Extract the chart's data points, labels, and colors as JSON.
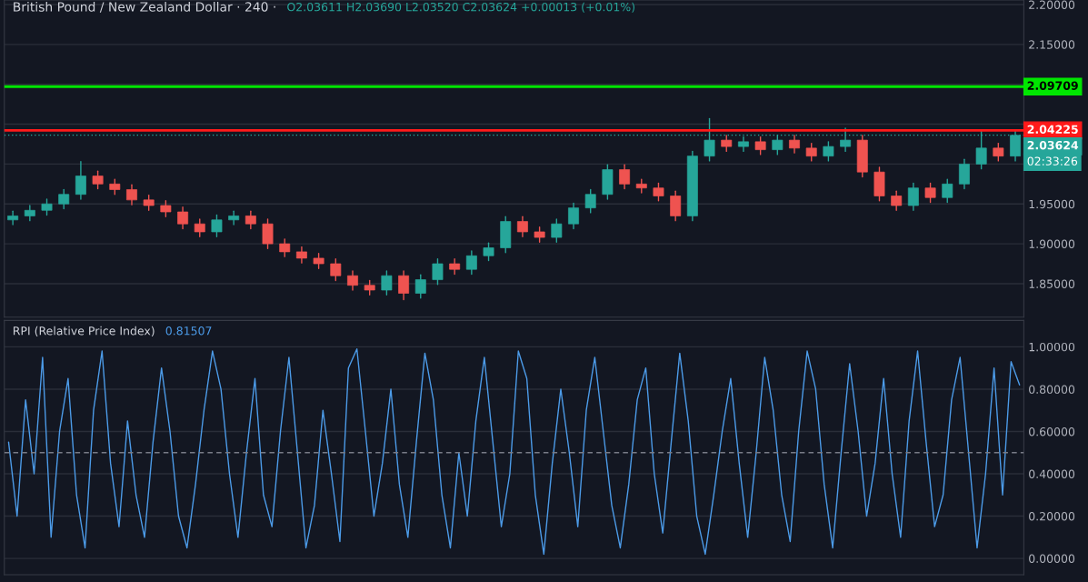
{
  "chart_data": [
    {
      "type": "candlestick",
      "title": "British Pound / New Zealand Dollar · 240 ·",
      "subtitle": "O2.03611 H2.03690 L2.03520 C2.03624 +0.00013 (+0.01%)",
      "categories": [
        null,
        null,
        null,
        null,
        null,
        null,
        null,
        null,
        null,
        null,
        null,
        null,
        null,
        null,
        null,
        null,
        null,
        null,
        null,
        null,
        null,
        null,
        null,
        null,
        null,
        null,
        null,
        null,
        null,
        null,
        null,
        null,
        null,
        null,
        null,
        null,
        null,
        null,
        null,
        null,
        null,
        null,
        null,
        null,
        null,
        null,
        null,
        null,
        null,
        null,
        null,
        null,
        null,
        null,
        null,
        null,
        null,
        null,
        null,
        null
      ],
      "ohlc": [
        [
          1.93,
          1.941,
          1.924,
          1.935
        ],
        [
          1.935,
          1.948,
          1.929,
          1.942
        ],
        [
          1.942,
          1.956,
          1.936,
          1.95
        ],
        [
          1.95,
          1.968,
          1.944,
          1.962
        ],
        [
          1.962,
          2.003,
          1.956,
          1.985
        ],
        [
          1.985,
          1.991,
          1.969,
          1.975
        ],
        [
          1.975,
          1.981,
          1.962,
          1.968
        ],
        [
          1.968,
          1.974,
          1.949,
          1.955
        ],
        [
          1.955,
          1.961,
          1.942,
          1.948
        ],
        [
          1.948,
          1.954,
          1.934,
          1.94
        ],
        [
          1.94,
          1.946,
          1.919,
          1.925
        ],
        [
          1.925,
          1.931,
          1.909,
          1.915
        ],
        [
          1.915,
          1.936,
          1.909,
          1.93
        ],
        [
          1.93,
          1.941,
          1.924,
          1.935
        ],
        [
          1.935,
          1.941,
          1.919,
          1.925
        ],
        [
          1.925,
          1.931,
          1.894,
          1.9
        ],
        [
          1.9,
          1.906,
          1.884,
          1.89
        ],
        [
          1.89,
          1.896,
          1.876,
          1.882
        ],
        [
          1.882,
          1.888,
          1.869,
          1.875
        ],
        [
          1.875,
          1.881,
          1.854,
          1.86
        ],
        [
          1.86,
          1.866,
          1.842,
          1.848
        ],
        [
          1.848,
          1.854,
          1.836,
          1.842
        ],
        [
          1.842,
          1.866,
          1.836,
          1.86
        ],
        [
          1.86,
          1.866,
          1.83,
          1.838
        ],
        [
          1.838,
          1.861,
          1.832,
          1.855
        ],
        [
          1.855,
          1.881,
          1.849,
          1.875
        ],
        [
          1.875,
          1.881,
          1.862,
          1.868
        ],
        [
          1.868,
          1.891,
          1.862,
          1.885
        ],
        [
          1.885,
          1.901,
          1.879,
          1.895
        ],
        [
          1.895,
          1.934,
          1.889,
          1.928
        ],
        [
          1.928,
          1.934,
          1.909,
          1.915
        ],
        [
          1.915,
          1.921,
          1.902,
          1.908
        ],
        [
          1.908,
          1.931,
          1.902,
          1.925
        ],
        [
          1.925,
          1.951,
          1.919,
          1.945
        ],
        [
          1.945,
          1.968,
          1.939,
          1.962
        ],
        [
          1.962,
          1.999,
          1.956,
          1.993
        ],
        [
          1.993,
          1.999,
          1.969,
          1.975
        ],
        [
          1.975,
          1.981,
          1.964,
          1.97
        ],
        [
          1.97,
          1.976,
          1.954,
          1.96
        ],
        [
          1.96,
          1.966,
          1.929,
          1.935
        ],
        [
          1.935,
          2.016,
          1.929,
          2.01
        ],
        [
          2.01,
          2.057,
          2.004,
          2.03
        ],
        [
          2.03,
          2.036,
          2.016,
          2.022
        ],
        [
          2.022,
          2.034,
          2.016,
          2.028
        ],
        [
          2.028,
          2.034,
          2.012,
          2.018
        ],
        [
          2.018,
          2.036,
          2.012,
          2.03
        ],
        [
          2.03,
          2.036,
          2.014,
          2.02
        ],
        [
          2.02,
          2.026,
          2.004,
          2.01
        ],
        [
          2.01,
          2.028,
          2.004,
          2.022
        ],
        [
          2.022,
          2.045,
          2.016,
          2.03
        ],
        [
          2.03,
          2.036,
          1.984,
          1.99
        ],
        [
          1.99,
          1.996,
          1.954,
          1.96
        ],
        [
          1.96,
          1.966,
          1.942,
          1.948
        ],
        [
          1.948,
          1.976,
          1.942,
          1.97
        ],
        [
          1.97,
          1.976,
          1.952,
          1.958
        ],
        [
          1.958,
          1.981,
          1.952,
          1.975
        ],
        [
          1.975,
          2.006,
          1.969,
          2.0
        ],
        [
          2.0,
          2.043,
          1.994,
          2.02
        ],
        [
          2.02,
          2.026,
          2.004,
          2.01
        ],
        [
          2.01,
          2.042,
          2.004,
          2.036
        ]
      ],
      "colors": [
        "#26a69a",
        "#26a69a",
        "#26a69a",
        "#26a69a",
        "#26a69a",
        "#ef5350",
        "#ef5350",
        "#ef5350",
        "#ef5350",
        "#ef5350",
        "#ef5350",
        "#ef5350",
        "#26a69a",
        "#26a69a",
        "#ef5350",
        "#ef5350",
        "#ef5350",
        "#ef5350",
        "#ef5350",
        "#ef5350",
        "#ef5350",
        "#ef5350",
        "#26a69a",
        "#ef5350",
        "#26a69a",
        "#26a69a",
        "#ef5350",
        "#26a69a",
        "#26a69a",
        "#26a69a",
        "#ef5350",
        "#ef5350",
        "#26a69a",
        "#26a69a",
        "#26a69a",
        "#26a69a",
        "#ef5350",
        "#ef5350",
        "#ef5350",
        "#ef5350",
        "#26a69a",
        "#26a69a",
        "#ef5350",
        "#26a69a",
        "#ef5350",
        "#26a69a",
        "#ef5350",
        "#ef5350",
        "#26a69a",
        "#26a69a",
        "#ef5350",
        "#ef5350",
        "#ef5350",
        "#26a69a",
        "#ef5350",
        "#26a69a",
        "#26a69a",
        "#26a69a",
        "#ef5350",
        "#26a69a"
      ],
      "ylim": [
        1.808,
        2.2057
      ],
      "yticks": [
        {
          "value": 1.85,
          "label": "1.85000"
        },
        {
          "value": 1.9,
          "label": "1.90000"
        },
        {
          "value": 1.95,
          "label": "1.95000"
        },
        {
          "value": 2.0,
          "label": null
        },
        {
          "value": 2.05,
          "label": null
        },
        {
          "value": 2.1,
          "label": null
        },
        {
          "value": 2.15,
          "label": "2.15000"
        },
        {
          "value": 2.2,
          "label": "2.20000"
        }
      ],
      "ref_lines": [
        {
          "axis": "y",
          "value": 2.09709,
          "label": "2.09709",
          "color": "#00e600",
          "line_style": "solid"
        },
        {
          "axis": "y",
          "value": 2.04225,
          "label": "2.04225",
          "color": "#ff1a1a",
          "line_style": "solid"
        },
        {
          "axis": "y",
          "value": 2.03624,
          "label": "2.03624",
          "color": "#26a69a",
          "line_style": "dotted"
        }
      ],
      "annotations": [
        "02:33:26"
      ],
      "grid": "y",
      "tick_labels": "y",
      "legend": false
    },
    {
      "type": "line",
      "title": "RPI (Relative Price Index)",
      "subtitle": "0.81507",
      "categories": [
        null,
        null,
        null,
        null,
        null,
        null,
        null,
        null,
        null,
        null,
        null,
        null,
        null,
        null,
        null,
        null,
        null,
        null,
        null,
        null,
        null,
        null,
        null,
        null,
        null,
        null,
        null,
        null,
        null,
        null,
        null,
        null,
        null,
        null,
        null,
        null,
        null,
        null,
        null,
        null,
        null,
        null,
        null,
        null,
        null,
        null,
        null,
        null,
        null,
        null,
        null,
        null,
        null,
        null,
        null,
        null,
        null,
        null,
        null,
        null,
        null,
        null,
        null,
        null,
        null,
        null,
        null,
        null,
        null,
        null,
        null,
        null,
        null,
        null,
        null,
        null,
        null,
        null,
        null,
        null,
        null,
        null,
        null,
        null,
        null,
        null,
        null,
        null,
        null,
        null,
        null,
        null,
        null,
        null,
        null,
        null,
        null,
        null,
        null,
        null,
        null,
        null,
        null,
        null,
        null,
        null,
        null,
        null,
        null,
        null,
        null,
        null,
        null,
        null,
        null,
        null,
        null,
        null,
        null,
        null
      ],
      "series": [
        {
          "color": "#4c9be8",
          "values": [
            0.55,
            0.2,
            0.75,
            0.4,
            0.95,
            0.1,
            0.6,
            0.85,
            0.3,
            0.05,
            0.7,
            0.98,
            0.45,
            0.15,
            0.65,
            0.3,
            0.1,
            0.55,
            0.9,
            0.6,
            0.2,
            0.05,
            0.35,
            0.7,
            0.98,
            0.8,
            0.4,
            0.1,
            0.5,
            0.85,
            0.3,
            0.15,
            0.6,
            0.95,
            0.5,
            0.05,
            0.25,
            0.7,
            0.4,
            0.08,
            0.9,
            0.99,
            0.6,
            0.2,
            0.45,
            0.8,
            0.35,
            0.1,
            0.55,
            0.97,
            0.75,
            0.3,
            0.05,
            0.5,
            0.2,
            0.65,
            0.95,
            0.55,
            0.15,
            0.4,
            0.98,
            0.85,
            0.3,
            0.02,
            0.45,
            0.8,
            0.5,
            0.15,
            0.7,
            0.95,
            0.6,
            0.25,
            0.05,
            0.35,
            0.75,
            0.9,
            0.4,
            0.12,
            0.55,
            0.97,
            0.65,
            0.2,
            0.02,
            0.3,
            0.6,
            0.85,
            0.45,
            0.1,
            0.5,
            0.95,
            0.7,
            0.3,
            0.08,
            0.6,
            0.98,
            0.8,
            0.35,
            0.05,
            0.5,
            0.92,
            0.6,
            0.2,
            0.45,
            0.85,
            0.4,
            0.1,
            0.65,
            0.98,
            0.55,
            0.15,
            0.3,
            0.75,
            0.95,
            0.5,
            0.05,
            0.4,
            0.9,
            0.3,
            0.93,
            0.82
          ]
        }
      ],
      "ylim": [
        -0.077,
        1.125
      ],
      "yticks": [
        {
          "value": 0,
          "label": "0.00000"
        },
        {
          "value": 0.2,
          "label": "0.20000"
        },
        {
          "value": 0.4,
          "label": "0.40000"
        },
        {
          "value": 0.6,
          "label": "0.60000"
        },
        {
          "value": 0.8,
          "label": "0.80000"
        },
        {
          "value": 1,
          "label": "1.00000"
        }
      ],
      "ref_lines": [
        {
          "axis": "y",
          "value": 0.5,
          "color": "#787b86",
          "line_style": "dashed"
        }
      ],
      "grid": "y",
      "tick_labels": "y",
      "legend": false
    }
  ]
}
